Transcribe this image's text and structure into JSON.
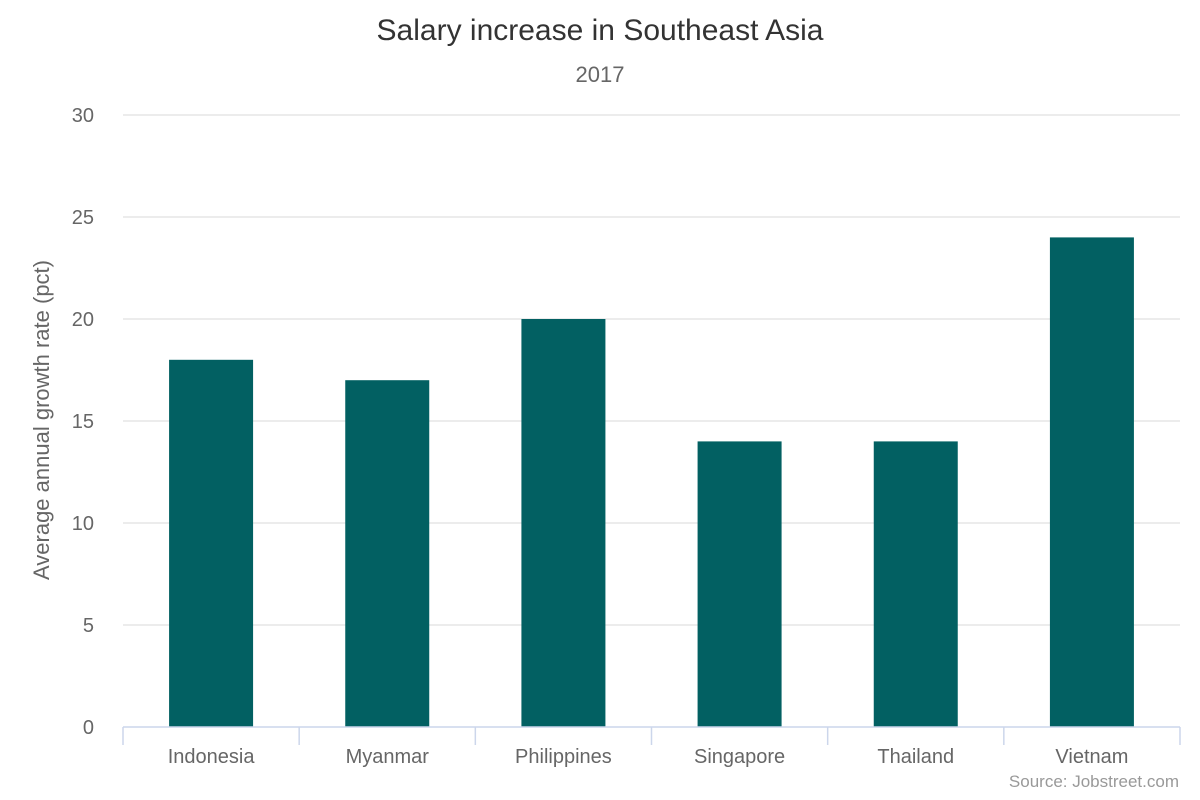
{
  "chart": {
    "title": "Salary increase in Southeast Asia",
    "subtitle": "2017",
    "source": "Source: Jobstreet.com",
    "bar_color": "#026062",
    "grid_color": "#e6e6e6",
    "axis_color": "#ccd6eb"
  },
  "chart_data": {
    "type": "bar",
    "title": "Salary increase in Southeast Asia",
    "subtitle": "2017",
    "xlabel": "",
    "ylabel": "Average annual growth rate (pct)",
    "categories": [
      "Indonesia",
      "Myanmar",
      "Philippines",
      "Singapore",
      "Thailand",
      "Vietnam"
    ],
    "values": [
      18,
      17,
      20,
      14,
      14,
      24
    ],
    "ylim": [
      0,
      30
    ],
    "yticks": [
      0,
      5,
      10,
      15,
      20,
      25,
      30
    ],
    "grid": true,
    "legend": null,
    "source": "Source: Jobstreet.com"
  }
}
